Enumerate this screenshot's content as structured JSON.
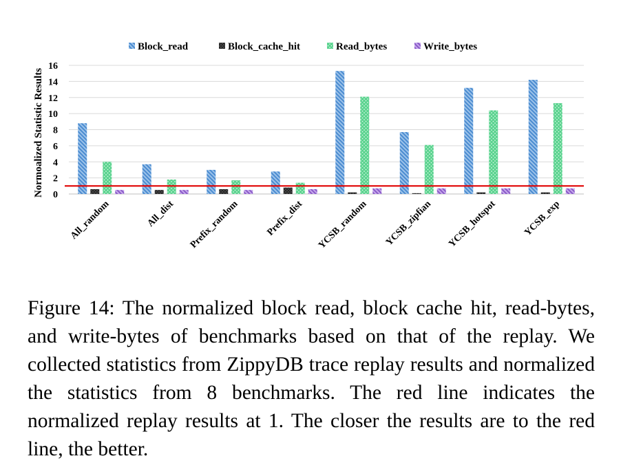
{
  "chart_data": {
    "type": "bar",
    "title": "",
    "ylabel": "Normoalized Statistic Results",
    "xlabel": "",
    "ylim": [
      0,
      16
    ],
    "yticks": [
      0,
      2,
      4,
      6,
      8,
      10,
      12,
      14,
      16
    ],
    "grid": true,
    "legend_position": "top",
    "categories": [
      "All_random",
      "All_dist",
      "Prefix_random",
      "Prefix_dist",
      "YCSB_random",
      "YCSB_zipfian",
      "YCSB_hotspot",
      "YCSB_exp"
    ],
    "series": [
      {
        "name": "Block_read",
        "color": "#5B9BD5",
        "pattern": "diagonal-hatch",
        "values": [
          8.8,
          3.7,
          3.0,
          2.8,
          15.3,
          7.7,
          13.2,
          14.2
        ]
      },
      {
        "name": "Block_cache_hit",
        "color": "#262626",
        "pattern": "dotted-dark",
        "values": [
          0.6,
          0.5,
          0.6,
          0.8,
          0.2,
          0.1,
          0.2,
          0.2
        ]
      },
      {
        "name": "Read_bytes",
        "color": "#6BD99B",
        "pattern": "dotted-light",
        "values": [
          4.0,
          1.8,
          1.7,
          1.4,
          12.1,
          6.1,
          10.4,
          11.3
        ]
      },
      {
        "name": "Write_bytes",
        "color": "#9B6FD1",
        "pattern": "diagonal-hatch",
        "values": [
          0.5,
          0.5,
          0.5,
          0.6,
          0.7,
          0.7,
          0.7,
          0.7
        ]
      }
    ],
    "reference_line": {
      "value": 1,
      "color": "#E00000"
    }
  },
  "caption": "Figure 14: The normalized block read, block cache hit, read-bytes, and write-bytes of benchmarks based on that of the replay. We collected statistics from ZippyDB trace replay results and normalized the statistics from 8 benchmarks. The red line indicates the normalized replay results at 1. The closer the results are to the red line, the better."
}
